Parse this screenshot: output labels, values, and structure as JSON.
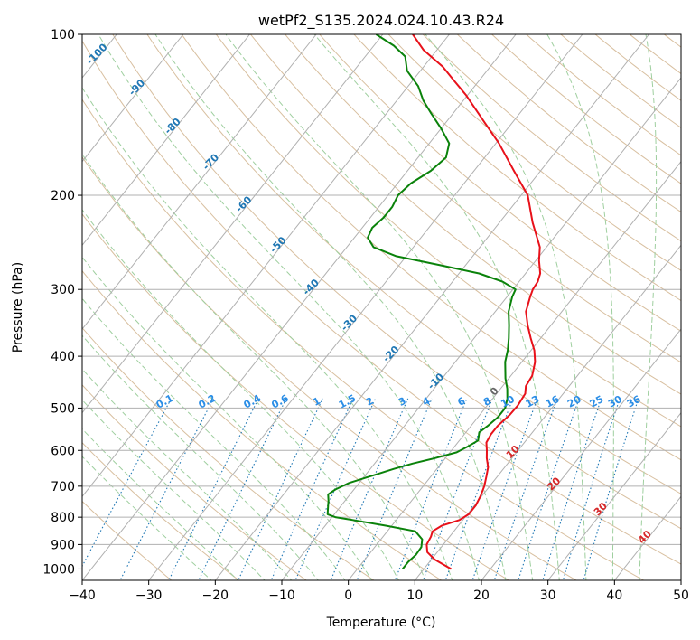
{
  "chart_data": {
    "type": "line",
    "title": "wetPf2_S135.2024.024.10.43.R24",
    "xlabel": "Temperature (°C)",
    "ylabel": "Pressure (hPa)",
    "xlim": [
      -40,
      50
    ],
    "ylim": [
      1050,
      100
    ],
    "y_scale": "log",
    "grid": true,
    "x_ticks": [
      -40,
      -30,
      -20,
      -10,
      0,
      10,
      20,
      30,
      40,
      50
    ],
    "y_ticks": [
      100,
      200,
      300,
      400,
      500,
      600,
      700,
      800,
      900,
      1000
    ],
    "series": [
      {
        "role": "temperature",
        "color": "#e8111a",
        "points": [
          [
            14.1,
            1000
          ],
          [
            10.5,
            960
          ],
          [
            8.5,
            930
          ],
          [
            7.5,
            900
          ],
          [
            7.2,
            870
          ],
          [
            6.8,
            850
          ],
          [
            7.5,
            830
          ],
          [
            9.5,
            810
          ],
          [
            10.2,
            790
          ],
          [
            10.2,
            760
          ],
          [
            9.8,
            730
          ],
          [
            9.2,
            700
          ],
          [
            8.3,
            670
          ],
          [
            7.5,
            645
          ],
          [
            6.2,
            620
          ],
          [
            5.3,
            600
          ],
          [
            4.3,
            580
          ],
          [
            4.0,
            560
          ],
          [
            4.0,
            540
          ],
          [
            4.5,
            515
          ],
          [
            4.6,
            495
          ],
          [
            4.3,
            470
          ],
          [
            3.5,
            455
          ],
          [
            3.2,
            435
          ],
          [
            2.0,
            410
          ],
          [
            0.5,
            390
          ],
          [
            -1.5,
            370
          ],
          [
            -3.5,
            350
          ],
          [
            -5.4,
            330
          ],
          [
            -6.5,
            310
          ],
          [
            -7.0,
            300
          ],
          [
            -7.2,
            290
          ],
          [
            -7.8,
            280
          ],
          [
            -9.5,
            265
          ],
          [
            -11.0,
            250
          ],
          [
            -15.0,
            225
          ],
          [
            -19.0,
            200
          ],
          [
            -24.0,
            180
          ],
          [
            -29.5,
            160
          ],
          [
            -34.6,
            145
          ],
          [
            -40.2,
            130
          ],
          [
            -43.8,
            122
          ],
          [
            -47.1,
            115
          ],
          [
            -52.0,
            107
          ],
          [
            -55.5,
            100
          ]
        ]
      },
      {
        "role": "dewpoint",
        "color": "#0a820a",
        "points": [
          [
            6.8,
            1000
          ],
          [
            6.8,
            970
          ],
          [
            7.1,
            940
          ],
          [
            7.0,
            910
          ],
          [
            6.2,
            880
          ],
          [
            4.2,
            850
          ],
          [
            -0.8,
            830
          ],
          [
            -6.5,
            810
          ],
          [
            -9.5,
            800
          ],
          [
            -11.0,
            790
          ],
          [
            -11.5,
            775
          ],
          [
            -12.0,
            760
          ],
          [
            -12.5,
            745
          ],
          [
            -13.3,
            725
          ],
          [
            -12.8,
            710
          ],
          [
            -11.5,
            690
          ],
          [
            -9.0,
            670
          ],
          [
            -6.5,
            650
          ],
          [
            -4.3,
            635
          ],
          [
            -1.5,
            620
          ],
          [
            1.0,
            605
          ],
          [
            2.0,
            590
          ],
          [
            2.8,
            575
          ],
          [
            2.0,
            555
          ],
          [
            2.5,
            540
          ],
          [
            3.0,
            520
          ],
          [
            3.0,
            500
          ],
          [
            2.2,
            480
          ],
          [
            1.0,
            460
          ],
          [
            -0.5,
            440
          ],
          [
            -2.5,
            410
          ],
          [
            -3.5,
            390
          ],
          [
            -4.8,
            370
          ],
          [
            -6.3,
            350
          ],
          [
            -8.0,
            330
          ],
          [
            -9.2,
            310
          ],
          [
            -9.6,
            300
          ],
          [
            -12.5,
            290
          ],
          [
            -17.0,
            280
          ],
          [
            -24.0,
            270
          ],
          [
            -31.5,
            260
          ],
          [
            -36.0,
            250
          ],
          [
            -38.0,
            240
          ],
          [
            -38.5,
            230
          ],
          [
            -38.0,
            220
          ],
          [
            -38.0,
            210
          ],
          [
            -38.5,
            200
          ],
          [
            -38.0,
            190
          ],
          [
            -36.5,
            180
          ],
          [
            -35.8,
            170
          ],
          [
            -37.0,
            160
          ],
          [
            -40.0,
            150
          ],
          [
            -43.5,
            140
          ],
          [
            -46.0,
            133
          ],
          [
            -48.5,
            125
          ],
          [
            -52.0,
            117
          ],
          [
            -54.0,
            110
          ],
          [
            -57.0,
            105
          ],
          [
            -61.0,
            100
          ]
        ]
      }
    ],
    "isotherm_labels": [
      "-100",
      "-90",
      "-80",
      "-70",
      "-60",
      "-50",
      "-40",
      "-30",
      "-20",
      "-10"
    ],
    "mixing_ratio_labels": [
      "0.1",
      "0.2",
      "0.4",
      "0.6",
      "1",
      "1.5",
      "2",
      "3",
      "4",
      "6",
      "8",
      "10",
      "13",
      "16",
      "20",
      "25",
      "30",
      "36"
    ],
    "moist_adiabat_labels": [
      "0",
      "10",
      "20",
      "30",
      "40"
    ]
  }
}
